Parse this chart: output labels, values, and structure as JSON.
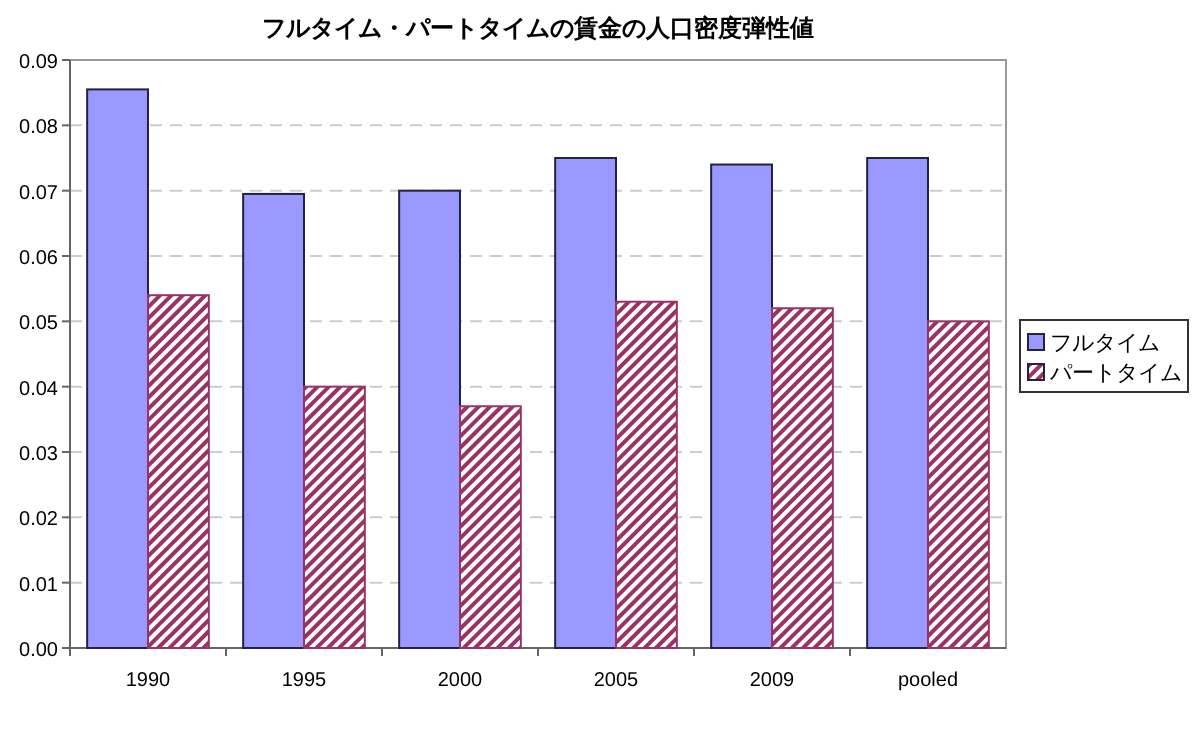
{
  "chart_data": {
    "type": "bar",
    "title": "フルタイム・パートタイムの賃金の人口密度弾性値",
    "categories": [
      "1990",
      "1995",
      "2000",
      "2005",
      "2009",
      "pooled"
    ],
    "series": [
      {
        "name": "フルタイム",
        "color": "#9999ff",
        "values": [
          0.0855,
          0.0695,
          0.07,
          0.075,
          0.074,
          0.075
        ]
      },
      {
        "name": "パートタイム",
        "color": "#993366",
        "values": [
          0.054,
          0.04,
          0.037,
          0.053,
          0.052,
          0.05
        ]
      }
    ],
    "ylim": [
      0,
      0.09
    ],
    "yticks": [
      {
        "value": 0,
        "label": "0.00"
      },
      {
        "value": 0.01,
        "label": "0.01"
      },
      {
        "value": 0.02,
        "label": "0.02"
      },
      {
        "value": 0.03,
        "label": "0.03"
      },
      {
        "value": 0.04,
        "label": "0.04"
      },
      {
        "value": 0.05,
        "label": "0.05"
      },
      {
        "value": 0.06,
        "label": "0.06"
      },
      {
        "value": 0.07,
        "label": "0.07"
      },
      {
        "value": 0.08,
        "label": "0.08"
      },
      {
        "value": 0.09,
        "label": "0.09"
      }
    ],
    "grid": "y",
    "legend": "right"
  }
}
